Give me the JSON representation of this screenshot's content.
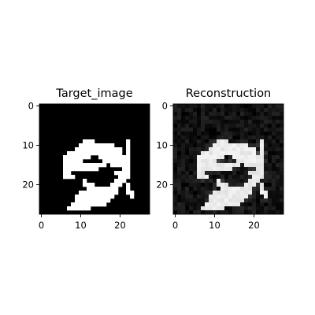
{
  "chart_data": [
    {
      "type": "heatmap",
      "title": "Target_image",
      "colormap": "gray",
      "image_size": [
        28,
        28
      ],
      "x_ticks": [
        0,
        10,
        20
      ],
      "y_ticks": [
        0,
        10,
        20
      ],
      "xlim": [
        -0.5,
        27.5
      ],
      "ylim": [
        27.5,
        -0.5
      ],
      "grid": false,
      "bright_runs_by_row": [
        [
          7,
          []
        ],
        [
          8,
          []
        ],
        [
          9,
          [
            [
              11,
              13
            ],
            [
              22,
              22
            ]
          ]
        ],
        [
          10,
          [
            [
              10,
              18
            ],
            [
              22,
              22
            ]
          ]
        ],
        [
          11,
          [
            [
              9,
              20
            ],
            [
              22,
              22
            ]
          ]
        ],
        [
          12,
          [
            [
              7,
              20
            ],
            [
              22,
              22
            ]
          ]
        ],
        [
          13,
          [
            [
              6,
              12
            ],
            [
              15,
              22
            ]
          ]
        ],
        [
          14,
          [
            [
              6,
              10
            ],
            [
              16,
              22
            ]
          ]
        ],
        [
          15,
          [
            [
              6,
              16
            ],
            [
              18,
              22
            ]
          ]
        ],
        [
          16,
          [
            [
              6,
              14
            ],
            [
              21,
              22
            ]
          ]
        ],
        [
          17,
          [
            [
              6,
              7
            ],
            [
              19,
              22
            ]
          ]
        ],
        [
          18,
          [
            [
              6,
              8
            ],
            [
              20,
              22
            ]
          ]
        ],
        [
          19,
          [
            [
              11,
              11
            ],
            [
              19,
              21
            ]
          ]
        ],
        [
          20,
          [
            [
              11,
              13
            ],
            [
              18,
              20
            ],
            [
              22,
              22
            ]
          ]
        ],
        [
          21,
          [
            [
              12,
              19
            ],
            [
              22,
              22
            ]
          ]
        ],
        [
          22,
          [
            [
              10,
              19
            ],
            [
              22,
              23
            ]
          ]
        ],
        [
          23,
          [
            [
              9,
              18
            ],
            [
              23,
              23
            ]
          ]
        ],
        [
          24,
          [
            [
              9,
              17
            ]
          ]
        ],
        [
          25,
          [
            [
              8,
              16
            ]
          ]
        ],
        [
          26,
          [
            [
              7,
              12
            ]
          ]
        ]
      ]
    },
    {
      "type": "heatmap",
      "title": "Reconstruction",
      "colormap": "gray",
      "image_size": [
        28,
        28
      ],
      "x_ticks": [
        0,
        10,
        20
      ],
      "y_ticks": [
        0,
        10,
        20
      ],
      "xlim": [
        -0.5,
        27.5
      ],
      "ylim": [
        27.5,
        -0.5
      ],
      "grid": false,
      "max_intensity": 0.96,
      "background_noise_level": 0.14
    }
  ]
}
